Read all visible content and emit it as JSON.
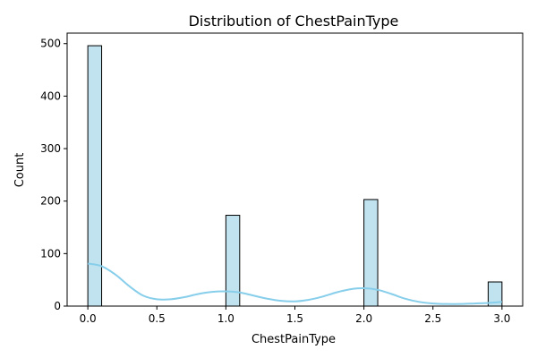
{
  "chart_data": {
    "type": "bar",
    "title": "Distribution of ChestPainType",
    "xlabel": "ChestPainType",
    "ylabel": "Count",
    "xlim": [
      -0.15,
      3.15
    ],
    "ylim": [
      0,
      520
    ],
    "x_ticks": [
      0.0,
      0.5,
      1.0,
      1.5,
      2.0,
      2.5,
      3.0
    ],
    "x_tick_labels": [
      "0.0",
      "0.5",
      "1.0",
      "1.5",
      "2.0",
      "2.5",
      "3.0"
    ],
    "y_ticks": [
      0,
      100,
      200,
      300,
      400,
      500
    ],
    "y_tick_labels": [
      "0",
      "100",
      "200",
      "300",
      "400",
      "500"
    ],
    "bin_width": 0.1,
    "bins": [
      {
        "x_start": 0.0,
        "x_end": 0.1,
        "count": 496
      },
      {
        "x_start": 1.0,
        "x_end": 1.1,
        "count": 173
      },
      {
        "x_start": 2.0,
        "x_end": 2.1,
        "count": 203
      },
      {
        "x_start": 2.9,
        "x_end": 3.0,
        "count": 46
      }
    ],
    "kde": {
      "x": [
        0.0,
        0.1,
        0.2,
        0.3,
        0.4,
        0.5,
        0.6,
        0.7,
        0.8,
        0.9,
        1.0,
        1.1,
        1.2,
        1.3,
        1.4,
        1.5,
        1.6,
        1.7,
        1.8,
        1.9,
        2.0,
        2.1,
        2.2,
        2.3,
        2.4,
        2.5,
        2.6,
        2.7,
        2.8,
        2.9,
        3.0
      ],
      "y": [
        81,
        76,
        60,
        38,
        20,
        13,
        13,
        17,
        23,
        27,
        28,
        26,
        20,
        14,
        10,
        9,
        12,
        18,
        26,
        32,
        34,
        31,
        23,
        14,
        8,
        5,
        4,
        4,
        5,
        6,
        8
      ]
    },
    "grid": false,
    "legend": "none",
    "colors": {
      "bar_fill": "#c1e3ef",
      "bar_stroke": "#000000",
      "kde_line": "#87ceeb",
      "axis": "#000000"
    }
  }
}
